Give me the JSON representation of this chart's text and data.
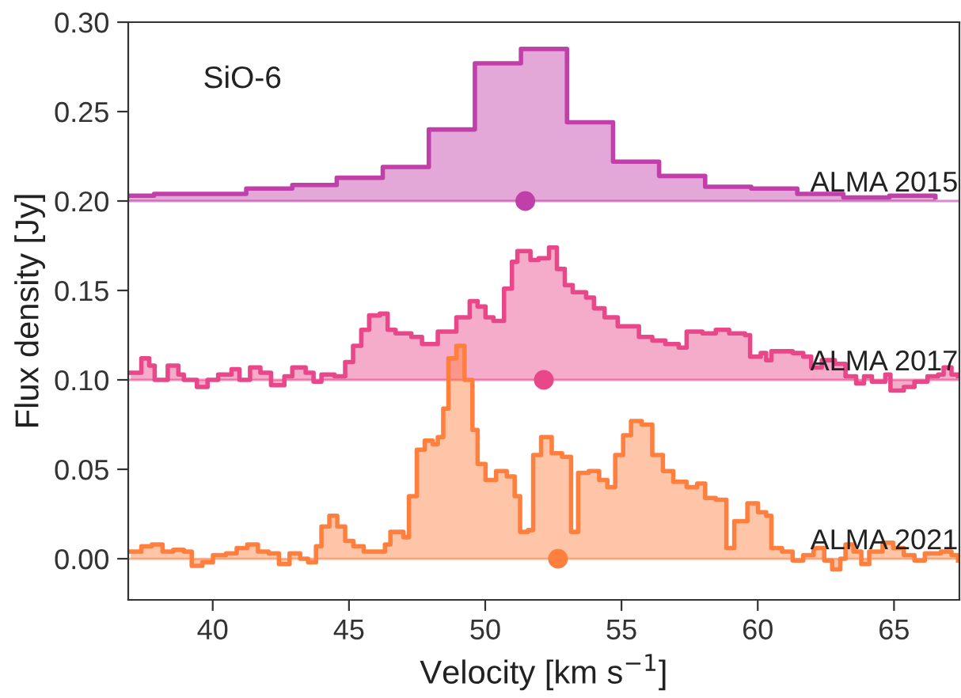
{
  "chart_data": {
    "type": "step",
    "xlabel": "Velocity [km s$^{−1}$]",
    "ylabel": "Flux density [Jy]",
    "annotations": [
      "SiO-6"
    ],
    "xlim": [
      36.9,
      67.4
    ],
    "xticks": [
      40,
      45,
      50,
      55,
      60,
      65
    ],
    "ylim": [
      -0.023,
      0.3
    ],
    "yticks": [
      {
        "value": 0,
        "label": "0.00"
      },
      {
        "value": 0.05,
        "label": "0.05"
      },
      {
        "value": 0.1,
        "label": "0.10"
      },
      {
        "value": 0.15,
        "label": "0.15"
      },
      {
        "value": 0.2,
        "label": "0.20"
      },
      {
        "value": 0.25,
        "label": "0.25"
      },
      {
        "value": 0.3,
        "label": "0.30"
      }
    ],
    "grid": false,
    "legend": false,
    "ref_lines": [
      {
        "axis": "y",
        "value": 0.2,
        "color": "#c03fa8"
      },
      {
        "axis": "y",
        "value": 0.1,
        "color": "#e8478a"
      },
      {
        "axis": "y",
        "value": 0.0,
        "color": "#ff7f3f"
      }
    ],
    "series": [
      {
        "name": "ALMA 2015",
        "color": "#c03fa8",
        "x": [
          36.9,
          37.85,
          41.23,
          42.92,
          44.55,
          46.24,
          47.93,
          49.62,
          51.31,
          53.0,
          54.69,
          56.38,
          58.07,
          59.76,
          61.45,
          63.14,
          64.83,
          66.52
        ],
        "values": [
          0.203,
          0.204,
          0.207,
          0.209,
          0.213,
          0.219,
          0.24,
          0.277,
          0.285,
          0.244,
          0.222,
          0.214,
          0.208,
          0.207,
          0.204,
          0.202,
          0.203,
          0.202
        ]
      },
      {
        "name": "ALMA 2017",
        "color": "#e8478a",
        "x": [
          36.99,
          37.38,
          37.67,
          37.87,
          38.35,
          38.74,
          38.94,
          39.42,
          39.81,
          40.2,
          40.69,
          40.98,
          41.37,
          41.75,
          42.14,
          42.63,
          42.92,
          43.41,
          43.7,
          43.99,
          44.47,
          44.86,
          45.15,
          45.45,
          45.74,
          46.13,
          46.42,
          46.71,
          47.29,
          47.68,
          48.07,
          48.26,
          48.75,
          48.94,
          49.43,
          49.72,
          50.01,
          50.3,
          50.69,
          50.98,
          51.18,
          51.66,
          51.96,
          52.34,
          52.63,
          52.92,
          53.21,
          53.7,
          53.99,
          54.38,
          54.86,
          55.35,
          55.64,
          56.13,
          56.61,
          57.1,
          57.39,
          57.97,
          58.46,
          58.95,
          59.53,
          59.72,
          60.11,
          60.31,
          60.5,
          60.89,
          61.28,
          61.67,
          61.96,
          62.35,
          62.83,
          63.22,
          63.61,
          63.9,
          64.19,
          64.68,
          64.87,
          65.36,
          65.75,
          66.23,
          66.62,
          66.82,
          67.11,
          67.35
        ],
        "values": [
          0.104,
          0.112,
          0.108,
          0.1,
          0.108,
          0.103,
          0.1,
          0.096,
          0.1,
          0.103,
          0.106,
          0.1,
          0.107,
          0.104,
          0.097,
          0.102,
          0.107,
          0.104,
          0.099,
          0.103,
          0.102,
          0.11,
          0.119,
          0.128,
          0.136,
          0.137,
          0.128,
          0.126,
          0.124,
          0.12,
          0.12,
          0.127,
          0.127,
          0.135,
          0.144,
          0.141,
          0.135,
          0.133,
          0.151,
          0.166,
          0.172,
          0.167,
          0.168,
          0.174,
          0.162,
          0.153,
          0.149,
          0.146,
          0.14,
          0.135,
          0.13,
          0.13,
          0.124,
          0.122,
          0.12,
          0.118,
          0.127,
          0.126,
          0.128,
          0.126,
          0.125,
          0.113,
          0.115,
          0.111,
          0.116,
          0.116,
          0.115,
          0.113,
          0.107,
          0.111,
          0.109,
          0.102,
          0.098,
          0.102,
          0.099,
          0.103,
          0.094,
          0.096,
          0.099,
          0.102,
          0.103,
          0.107,
          0.103,
          0.102
        ]
      },
      {
        "name": "ALMA 2021",
        "color": "#ff7f3f",
        "x": [
          36.99,
          37.38,
          37.77,
          38.16,
          38.55,
          38.94,
          39.23,
          39.62,
          40.01,
          40.49,
          40.88,
          41.27,
          41.66,
          42.05,
          42.43,
          42.82,
          43.21,
          43.5,
          43.79,
          43.99,
          44.28,
          44.57,
          44.86,
          45.16,
          45.54,
          46.03,
          46.32,
          46.52,
          47.0,
          47.2,
          47.49,
          47.78,
          48.07,
          48.26,
          48.46,
          48.65,
          48.94,
          49.24,
          49.53,
          49.72,
          50.01,
          50.4,
          50.79,
          51.08,
          51.28,
          51.57,
          51.76,
          52.05,
          52.44,
          52.82,
          53.15,
          53.41,
          53.8,
          54.18,
          54.48,
          54.77,
          55.06,
          55.35,
          55.74,
          56.13,
          56.52,
          56.9,
          57.39,
          57.78,
          58.07,
          58.46,
          58.85,
          59.14,
          59.62,
          60.01,
          60.31,
          60.5,
          60.89,
          61.28,
          61.67,
          62.05,
          62.44,
          62.73,
          63.03,
          63.22,
          63.51,
          63.8,
          64.09,
          64.58,
          64.97,
          65.36,
          65.75,
          66.13,
          66.72,
          67.11,
          67.35
        ],
        "values": [
          0.004,
          0.007,
          0.008,
          0.004,
          0.005,
          0.004,
          -0.004,
          -0.002,
          0.002,
          0.003,
          0.006,
          0.008,
          0.004,
          0.003,
          -0.003,
          0.003,
          0.0,
          -0.002,
          0.007,
          0.018,
          0.024,
          0.018,
          0.01,
          0.007,
          0.004,
          0.004,
          0.008,
          0.015,
          0.012,
          0.035,
          0.061,
          0.066,
          0.064,
          0.068,
          0.084,
          0.112,
          0.119,
          0.1,
          0.072,
          0.053,
          0.044,
          0.049,
          0.046,
          0.035,
          0.015,
          0.016,
          0.058,
          0.068,
          0.059,
          0.057,
          0.015,
          0.048,
          0.049,
          0.044,
          0.04,
          0.058,
          0.069,
          0.077,
          0.075,
          0.058,
          0.049,
          0.043,
          0.04,
          0.042,
          0.034,
          0.033,
          0.006,
          0.021,
          0.031,
          0.026,
          0.024,
          0.006,
          0.004,
          -0.001,
          0.002,
          0.006,
          -0.001,
          -0.006,
          0.0,
          0.008,
          0.004,
          -0.003,
          0.004,
          0.009,
          0.006,
          0.002,
          -0.001,
          0.003,
          0.004,
          0.002,
          -0.001
        ]
      },
      {
        "type": "scatter",
        "color": "#c03fa8",
        "x": [
          51.47
        ],
        "values": [
          0.2
        ],
        "marker": "circle"
      },
      {
        "type": "scatter",
        "color": "#e8478a",
        "x": [
          52.15
        ],
        "values": [
          0.1
        ],
        "marker": "circle"
      },
      {
        "type": "scatter",
        "color": "#ff7f3f",
        "x": [
          52.67
        ],
        "values": [
          0.0
        ],
        "marker": "circle"
      }
    ]
  }
}
